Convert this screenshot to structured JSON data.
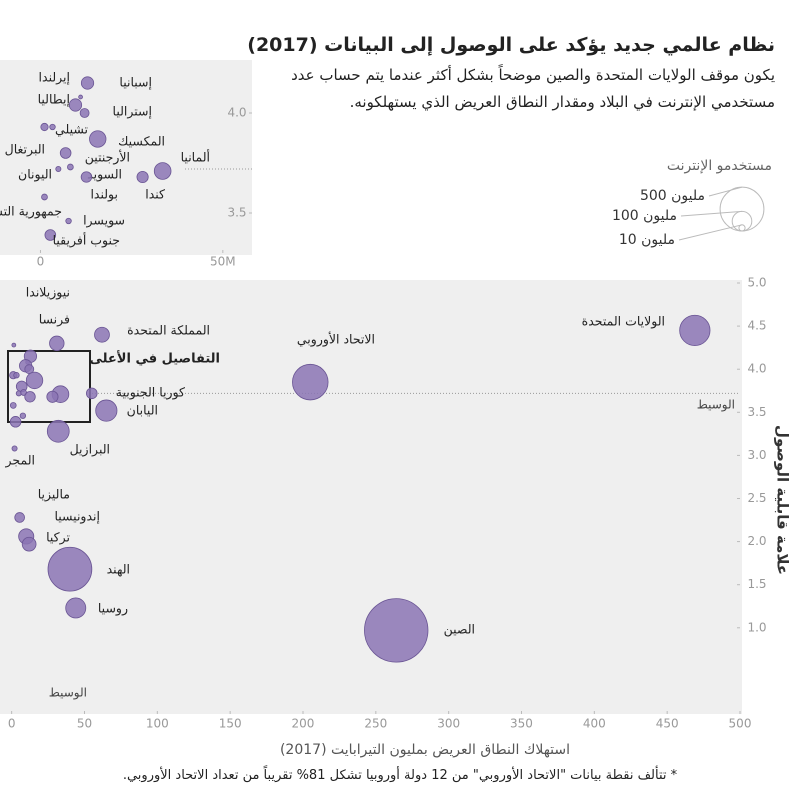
{
  "chart_data": [
    {
      "type": "bubble",
      "title": "نظام عالمي جديد يؤكد على الوصول إلى البيانات (2017)",
      "subtitle": "يكون موقف الولايات المتحدة والصين موضحاً بشكل أكثر عندما يتم حساب عدد مستخدمي الإنترنت في البلاد ومقدار النطاق العريض الذي يستهلكونه.",
      "x_label": "استهلاك النطاق العريض بمليون التيرابايت (2017)",
      "y_label": "علامة قابلية الوصول",
      "footnote": "* تتألف نقطة بيانات \"الاتحاد الأوروبي\" من 12 دولة أوروبيا تشكل 81% تقريباً من تعداد الاتحاد الأوروبي.",
      "annotation": "التفاصيل في الأعلى",
      "median_label": "الوسيط",
      "median_x_label": "الوسيط",
      "median_y": 3.72,
      "color": "#8b74b4",
      "size_legend": {
        "title": "مستخدمو الإنترنت",
        "values": [
          {
            "value": 500,
            "label": "500 مليون"
          },
          {
            "value": 100,
            "label": "100 مليون"
          },
          {
            "value": 10,
            "label": "10 مليون"
          }
        ]
      },
      "categories": [
        "الولايات المتحدة",
        "الاتحاد الأوروبي",
        "الصين",
        "الهند",
        "روسيا",
        "البرازيل",
        "اليابان",
        "كوريا الجنوبية",
        "المملكة المتحدة",
        "فرنسا",
        "نيوزيلاندا",
        "المجر",
        "ماليزيا",
        "إندونيسيا",
        "تركيا"
      ],
      "x": [
        469,
        205,
        264,
        40,
        44,
        32,
        65,
        55,
        62,
        31,
        1.5,
        2,
        5.5,
        10,
        12
      ],
      "values": [
        4.45,
        3.85,
        0.97,
        1.68,
        1.23,
        3.28,
        3.52,
        3.72,
        4.4,
        4.3,
        4.28,
        3.08,
        2.28,
        2.06,
        1.97
      ],
      "sizes": [
        240,
        330,
        1050,
        500,
        105,
        125,
        118,
        30,
        58,
        55,
        4,
        7,
        25,
        60,
        50
      ],
      "xlim": [
        -8,
        500
      ],
      "ylim": [
        0,
        5
      ],
      "xticks": [
        0,
        50,
        100,
        150,
        200,
        250,
        300,
        350,
        400,
        450,
        500
      ],
      "yticks": [
        {
          "value": 1,
          "label": "1.0"
        },
        1.5,
        {
          "value": 2,
          "label": "2.0"
        },
        2.5,
        {
          "value": 3,
          "label": "3.0"
        },
        3.5,
        {
          "value": 4,
          "label": "4.0"
        },
        4.5,
        {
          "value": 5,
          "label": "5.0"
        }
      ]
    },
    {
      "type": "bubble",
      "color": "#8b74b4",
      "median_y": 3.72,
      "categories": [
        "إسبانيا",
        "إيرلندا",
        "إيطاليا",
        "إستراليا",
        "تشيلي",
        "البرتغال",
        "المكسيك",
        "الأرجنتين",
        "اليونان",
        "السويد",
        "ألمانيا",
        "كندا",
        "بولندا",
        "جمهورية التشيك",
        "سويسرا",
        "جنوب أفريقيا"
      ],
      "x": [
        12.9,
        11,
        9.6,
        12.1,
        1.1,
        3.3,
        15.7,
        6.9,
        4.9,
        8.2,
        33.5,
        28,
        12.6,
        1.1,
        7.7,
        2.7
      ],
      "values": [
        4.15,
        4.08,
        4.04,
        4.0,
        3.93,
        3.93,
        3.87,
        3.8,
        3.72,
        3.73,
        3.71,
        3.68,
        3.68,
        3.58,
        3.46,
        3.39
      ],
      "sizes": [
        40,
        4,
        40,
        21,
        14,
        8,
        71,
        30,
        7,
        9,
        73,
        33,
        29,
        9,
        8,
        30
      ],
      "xlim": [
        -10,
        58
      ],
      "ylim": [
        3.3,
        4.25
      ],
      "xticks": [
        0,
        {
          "value": 50,
          "label": "50M"
        }
      ],
      "yticks": [
        3.5,
        {
          "value": 4,
          "label": "4.0"
        }
      ]
    }
  ]
}
